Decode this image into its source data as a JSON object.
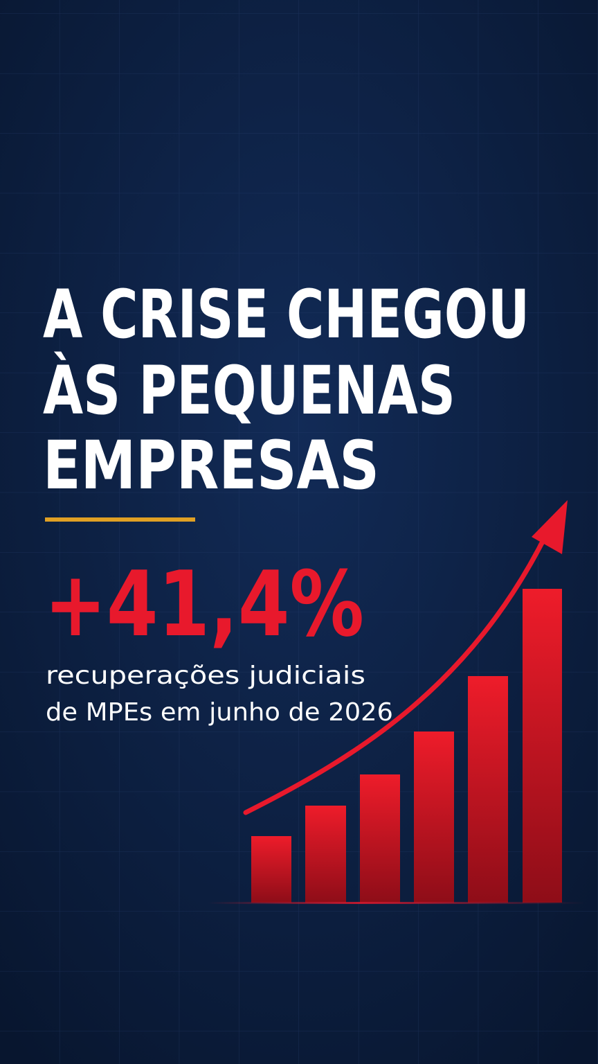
{
  "headline": {
    "lines": [
      "A CRISE CHEGOU",
      "ÀS PEQUENAS",
      "EMPRESAS"
    ]
  },
  "stat": {
    "value": "+41,4%"
  },
  "description": {
    "lines": [
      "recuperações judiciais",
      "de MPEs em junho de 2026"
    ]
  }
}
